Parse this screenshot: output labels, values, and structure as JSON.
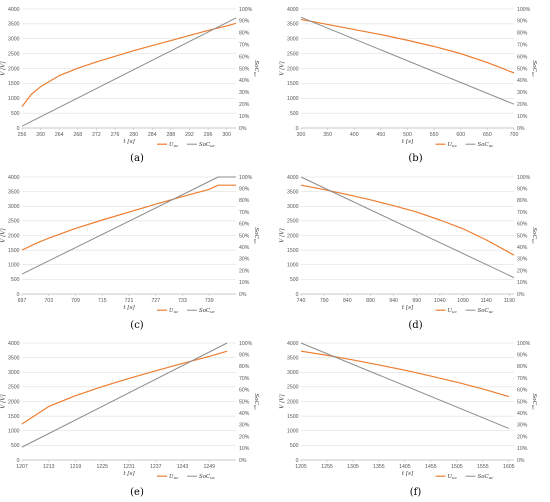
{
  "colors": {
    "U": "#ED7D31",
    "SoC": "#8C8C8C",
    "grid": "#D9D9D9",
    "axis": "#BFBFBF"
  },
  "chart_data": [
    {
      "type": "line",
      "caption": "(a)",
      "xlabel": "t [s]",
      "ylabel": "V [V]",
      "y2label": "SoC_uc",
      "xlim": [
        256,
        302
      ],
      "xticks": [
        "256",
        "260",
        "264",
        "268",
        "272",
        "276",
        "280",
        "284",
        "288",
        "292",
        "296",
        "300"
      ],
      "ylim": [
        0,
        4000
      ],
      "yticks": [
        "0",
        "500",
        "1000",
        "1500",
        "2000",
        "2500",
        "3000",
        "3500",
        "4000"
      ],
      "y2lim": [
        0,
        100
      ],
      "y2ticks": [
        "0%",
        "10%",
        "20%",
        "30%",
        "40%",
        "50%",
        "60%",
        "70%",
        "80%",
        "90%",
        "100%"
      ],
      "legend": [
        "U_uc",
        "SoC_uc"
      ],
      "series": [
        {
          "name": "U_uc",
          "axis": "left",
          "x": [
            256,
            258,
            260,
            264,
            268,
            272,
            276,
            280,
            284,
            288,
            292,
            296,
            300,
            302
          ],
          "values": [
            720,
            1130,
            1390,
            1760,
            2010,
            2220,
            2410,
            2600,
            2770,
            2940,
            3110,
            3280,
            3430,
            3520
          ]
        },
        {
          "name": "SoC_uc",
          "axis": "right",
          "x": [
            256,
            302
          ],
          "values": [
            1.5,
            92.5
          ]
        }
      ]
    },
    {
      "type": "line",
      "caption": "(b)",
      "xlabel": "t [s]",
      "ylabel": "V [V]",
      "y2label": "SoC_uc",
      "xlim": [
        300,
        700
      ],
      "xticks": [
        "300",
        "350",
        "400",
        "450",
        "500",
        "550",
        "600",
        "650",
        "700"
      ],
      "ylim": [
        0,
        4000
      ],
      "yticks": [
        "0",
        "500",
        "1000",
        "1500",
        "2000",
        "2500",
        "3000",
        "3500",
        "4000"
      ],
      "y2lim": [
        0,
        100
      ],
      "y2ticks": [
        "0%",
        "10%",
        "20%",
        "30%",
        "40%",
        "50%",
        "60%",
        "70%",
        "80%",
        "90%",
        "100%"
      ],
      "legend": [
        "U_uc",
        "SoC_uc"
      ],
      "series": [
        {
          "name": "U_uc",
          "axis": "left",
          "x": [
            300,
            350,
            400,
            450,
            500,
            550,
            600,
            650,
            700
          ],
          "values": [
            3650,
            3480,
            3310,
            3140,
            2950,
            2740,
            2500,
            2200,
            1850
          ]
        },
        {
          "name": "SoC_uc",
          "axis": "right",
          "x": [
            300,
            700
          ],
          "values": [
            93,
            20
          ]
        }
      ]
    },
    {
      "type": "line",
      "caption": "(c)",
      "xlabel": "t [s]",
      "ylabel": "V [V]",
      "y2label": "SoC_uc",
      "xlim": [
        697,
        745
      ],
      "xticks": [
        "697",
        "703",
        "709",
        "715",
        "721",
        "727",
        "733",
        "739"
      ],
      "ylim": [
        0,
        4000
      ],
      "yticks": [
        "0",
        "500",
        "1000",
        "1500",
        "2000",
        "2500",
        "3000",
        "3500",
        "4000"
      ],
      "y2lim": [
        0,
        100
      ],
      "y2ticks": [
        "0%",
        "10%",
        "20%",
        "30%",
        "40%",
        "50%",
        "60%",
        "70%",
        "80%",
        "90%",
        "100%"
      ],
      "legend": [
        "U_uc",
        "SoC_uc"
      ],
      "series": [
        {
          "name": "U_uc",
          "axis": "left",
          "x": [
            697,
            700,
            703,
            709,
            715,
            721,
            727,
            733,
            739,
            741,
            745
          ],
          "values": [
            1500,
            1720,
            1910,
            2240,
            2530,
            2800,
            3070,
            3330,
            3580,
            3720,
            3720
          ]
        },
        {
          "name": "SoC_uc",
          "axis": "right",
          "x": [
            697,
            741,
            745
          ],
          "values": [
            17,
            100,
            100
          ]
        }
      ]
    },
    {
      "type": "line",
      "caption": "(d)",
      "xlabel": "t [s]",
      "ylabel": "V [V]",
      "y2label": "SoC_uc",
      "xlim": [
        740,
        1200
      ],
      "xticks": [
        "740",
        "790",
        "840",
        "890",
        "940",
        "990",
        "1040",
        "1090",
        "1140",
        "1190"
      ],
      "ylim": [
        0,
        4000
      ],
      "yticks": [
        "0",
        "500",
        "1000",
        "1500",
        "2000",
        "2500",
        "3000",
        "3500",
        "4000"
      ],
      "y2lim": [
        0,
        100
      ],
      "y2ticks": [
        "0%",
        "10%",
        "20%",
        "30%",
        "40%",
        "50%",
        "60%",
        "70%",
        "80%",
        "90%",
        "100%"
      ],
      "legend": [
        "U_uc",
        "SoC_uc"
      ],
      "series": [
        {
          "name": "U_uc",
          "axis": "left",
          "x": [
            740,
            790,
            840,
            890,
            940,
            990,
            1040,
            1090,
            1140,
            1200
          ],
          "values": [
            3720,
            3570,
            3400,
            3220,
            3020,
            2800,
            2530,
            2230,
            1850,
            1330
          ]
        },
        {
          "name": "SoC_uc",
          "axis": "right",
          "x": [
            740,
            1200
          ],
          "values": [
            100,
            14
          ]
        }
      ]
    },
    {
      "type": "line",
      "caption": "(e)",
      "xlabel": "t [s]",
      "ylabel": "V [V]",
      "y2label": "SoC_uc",
      "xlim": [
        1207,
        1255
      ],
      "xticks": [
        "1207",
        "1213",
        "1219",
        "1225",
        "1231",
        "1237",
        "1243",
        "1249"
      ],
      "ylim": [
        0,
        4000
      ],
      "yticks": [
        "0",
        "500",
        "1000",
        "1500",
        "2000",
        "2500",
        "3000",
        "3500",
        "4000"
      ],
      "y2lim": [
        0,
        100
      ],
      "y2ticks": [
        "0%",
        "10%",
        "20%",
        "30%",
        "40%",
        "50%",
        "60%",
        "70%",
        "80%",
        "90%",
        "100%"
      ],
      "legend": [
        "U_uc",
        "SoC_uc"
      ],
      "series": [
        {
          "name": "U_uc",
          "axis": "left",
          "x": [
            1207,
            1213,
            1219,
            1225,
            1231,
            1237,
            1243,
            1249,
            1253
          ],
          "values": [
            1230,
            1830,
            2200,
            2510,
            2790,
            3050,
            3300,
            3540,
            3720
          ]
        },
        {
          "name": "SoC_uc",
          "axis": "right",
          "x": [
            1207,
            1253
          ],
          "values": [
            11,
            100
          ]
        }
      ]
    },
    {
      "type": "line",
      "caption": "(f)",
      "xlabel": "t [s]",
      "ylabel": "V [V]",
      "y2label": "SoC_uc",
      "xlim": [
        1205,
        1615
      ],
      "xticks": [
        "1205",
        "1255",
        "1305",
        "1355",
        "1405",
        "1455",
        "1505",
        "1555",
        "1605"
      ],
      "ylim": [
        0,
        4000
      ],
      "yticks": [
        "0",
        "500",
        "1000",
        "1500",
        "2000",
        "2500",
        "3000",
        "3500",
        "4000"
      ],
      "y2lim": [
        0,
        100
      ],
      "y2ticks": [
        "0%",
        "10%",
        "20%",
        "30%",
        "40%",
        "50%",
        "60%",
        "70%",
        "80%",
        "90%",
        "100%"
      ],
      "legend": [
        "U_uc",
        "SoC_uc"
      ],
      "series": [
        {
          "name": "U_uc",
          "axis": "left",
          "x": [
            1205,
            1255,
            1305,
            1355,
            1405,
            1455,
            1505,
            1555,
            1605
          ],
          "values": [
            3720,
            3580,
            3420,
            3250,
            3070,
            2870,
            2660,
            2430,
            2170
          ]
        },
        {
          "name": "SoC_uc",
          "axis": "right",
          "x": [
            1205,
            1605
          ],
          "values": [
            100,
            27
          ]
        }
      ]
    }
  ]
}
